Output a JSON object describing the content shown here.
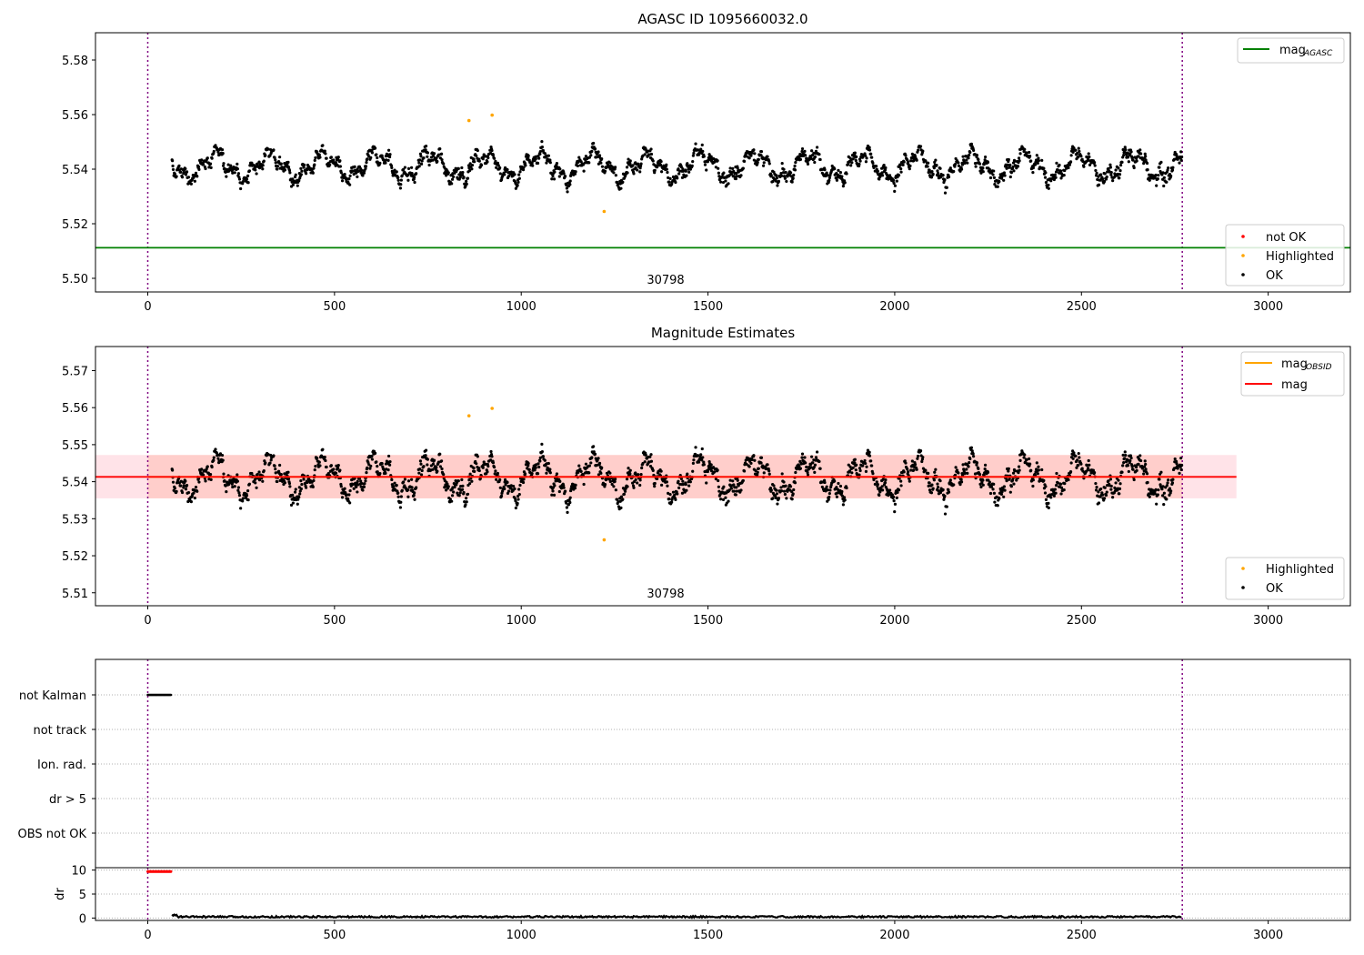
{
  "figure": {
    "top_title": "AGASC ID 1095660032.0",
    "middle_title": "Magnitude Estimates",
    "obsid_label": "30798"
  },
  "chart_data": [
    {
      "id": "agasc",
      "type": "scatter",
      "title": "AGASC ID 1095660032.0",
      "xlim": [
        -140,
        3220
      ],
      "ylim": [
        5.495,
        5.59
      ],
      "xticks": [
        0,
        500,
        1000,
        1500,
        2000,
        2500,
        3000
      ],
      "yticks": [
        5.5,
        5.52,
        5.54,
        5.56,
        5.58
      ],
      "ytick_labels": [
        "5.50",
        "5.52",
        "5.54",
        "5.56",
        "5.58"
      ],
      "obs_boundaries": [
        0,
        2770
      ],
      "obsid": "30798",
      "obsid_x": 1380,
      "lines": [
        {
          "name": "mag_AGASC",
          "legend_main": "mag",
          "legend_sub": "AGASC",
          "y": 5.5112,
          "x": [
            -140,
            3220
          ],
          "color": "#008000"
        }
      ],
      "legend_scatter": [
        "not OK",
        "Highlighted",
        "OK"
      ],
      "legend_colors": [
        "#ff0000",
        "#ffa500",
        "#000000"
      ],
      "legend_position": "top-right / lower-right",
      "series": [
        {
          "name": "OK",
          "color": "#000000",
          "x_range": [
            65,
            2770
          ],
          "mean": 5.5411,
          "spread": 0.0055
        },
        {
          "name": "Highlighted",
          "color": "#ffa500",
          "points": [
            [
              860,
              5.5578
            ],
            [
              922,
              5.5598
            ],
            [
              1222,
              5.5245
            ]
          ]
        }
      ]
    },
    {
      "id": "estimates",
      "type": "scatter",
      "title": "Magnitude Estimates",
      "xlim": [
        -140,
        3220
      ],
      "ylim": [
        5.5065,
        5.5765
      ],
      "xticks": [
        0,
        500,
        1000,
        1500,
        2000,
        2500,
        3000
      ],
      "yticks": [
        5.51,
        5.52,
        5.53,
        5.54,
        5.55,
        5.56,
        5.57
      ],
      "ytick_labels": [
        "5.51",
        "5.52",
        "5.53",
        "5.54",
        "5.55",
        "5.56",
        "5.57"
      ],
      "obs_boundaries": [
        0,
        2770
      ],
      "obsid": "30798",
      "obsid_x": 1380,
      "bands": [
        {
          "name": "mag_OBSID band",
          "x": [
            0,
            2770
          ],
          "y": [
            5.5355,
            5.5472
          ],
          "color": "#ffa07a",
          "alpha": 0.4
        },
        {
          "name": "mag band",
          "x": [
            -140,
            2915
          ],
          "y": [
            5.5355,
            5.5472
          ],
          "color": "#ffc0cb",
          "alpha": 0.45
        }
      ],
      "lines": [
        {
          "name": "mag_OBSID",
          "legend_main": "mag",
          "legend_sub": "OBSID",
          "y": 5.5413,
          "x": [
            0,
            2770
          ],
          "color": "#ffa500"
        },
        {
          "name": "mag",
          "legend_main": "mag",
          "legend_sub": "",
          "y": 5.5413,
          "x": [
            -140,
            2915
          ],
          "color": "#ff0000"
        }
      ],
      "legend_scatter": [
        "Highlighted",
        "OK"
      ],
      "legend_colors": [
        "#ffa500",
        "#000000"
      ],
      "series": [
        {
          "name": "OK",
          "color": "#000000",
          "x_range": [
            65,
            2770
          ],
          "mean": 5.5411,
          "spread": 0.0055
        },
        {
          "name": "Highlighted",
          "color": "#ffa500",
          "points": [
            [
              860,
              5.5578
            ],
            [
              922,
              5.5598
            ],
            [
              1222,
              5.5243
            ]
          ]
        }
      ]
    },
    {
      "id": "flags",
      "type": "scatter",
      "categories": [
        "not Kalman",
        "not track",
        "Ion. rad.",
        "dr > 5",
        "OBS not OK"
      ],
      "xlim": [
        -140,
        3220
      ],
      "obs_boundaries": [
        0,
        2770
      ],
      "flag_segments": [
        {
          "category": "not Kalman",
          "x": [
            0,
            62
          ],
          "color": "#000000"
        }
      ]
    },
    {
      "id": "dr",
      "type": "scatter",
      "ylabel": "dr",
      "xlim": [
        -140,
        3220
      ],
      "ylim": [
        -0.5,
        10.5
      ],
      "yticks": [
        0,
        5,
        10
      ],
      "ytick_labels": [
        "0",
        "5",
        "10"
      ],
      "xticks": [
        0,
        500,
        1000,
        1500,
        2000,
        2500,
        3000
      ],
      "obs_boundaries": [
        0,
        2770
      ],
      "series": [
        {
          "name": "dr > 5",
          "color": "#ff0000",
          "x_range": [
            0,
            62
          ],
          "value": 9.7
        },
        {
          "name": "dr",
          "color": "#000000",
          "x_range": [
            65,
            2770
          ],
          "value": 0.25
        }
      ]
    }
  ]
}
